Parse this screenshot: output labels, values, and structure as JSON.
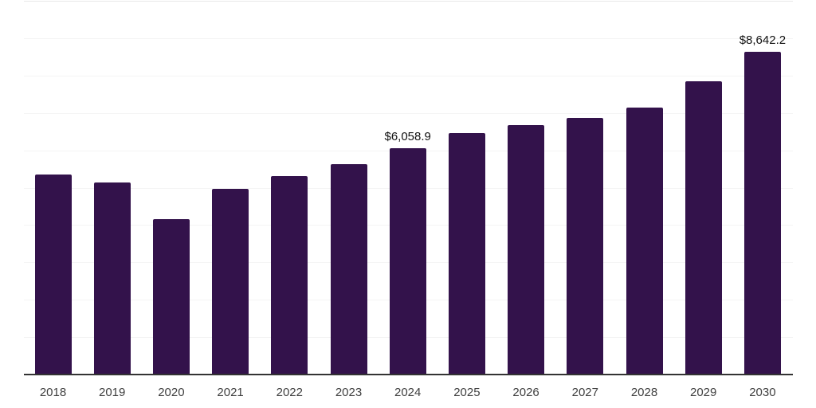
{
  "chart_data": {
    "type": "bar",
    "title": "",
    "xlabel": "",
    "ylabel": "",
    "categories": [
      "2018",
      "2019",
      "2020",
      "2021",
      "2022",
      "2023",
      "2024",
      "2025",
      "2026",
      "2027",
      "2028",
      "2029",
      "2030"
    ],
    "values": [
      5360,
      5150,
      4150,
      4970,
      5300,
      5640,
      6058.9,
      6460,
      6680,
      6860,
      7140,
      7840,
      8642.2
    ],
    "value_labels": [
      "",
      "",
      "",
      "",
      "",
      "",
      "$6,058.9",
      "",
      "",
      "",
      "",
      "",
      "$8,642.2"
    ],
    "ylim": [
      0,
      10000
    ],
    "gridline_interval": 1000,
    "grid": "horizontal",
    "legend": "none",
    "colors": {
      "bar": "#33124B",
      "axis_line": "#333333",
      "gridline": "#f4f4f4",
      "top_gridline": "#e9e9e9",
      "tick_label": "#404040",
      "value_label": "#111111",
      "background": "#ffffff"
    }
  }
}
